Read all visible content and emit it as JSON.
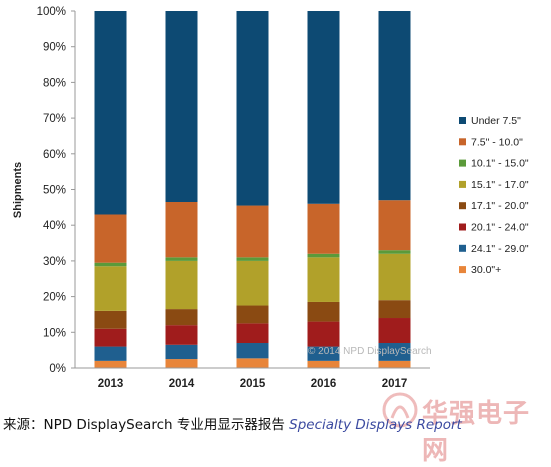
{
  "chart_data": {
    "type": "bar",
    "stacked": true,
    "normalized": true,
    "title": "",
    "xlabel": "",
    "ylabel": "Shipments",
    "ylim": [
      0,
      100
    ],
    "yticks": [
      "0%",
      "10%",
      "20%",
      "30%",
      "40%",
      "50%",
      "60%",
      "70%",
      "80%",
      "90%",
      "100%"
    ],
    "categories": [
      "2013",
      "2014",
      "2015",
      "2016",
      "2017"
    ],
    "legend_position": "right",
    "grid": false,
    "series": [
      {
        "name": "30.0\"+",
        "color": "#e8853a",
        "values": [
          2.0,
          2.5,
          2.7,
          2.0,
          2.0
        ]
      },
      {
        "name": "24.1\" - 29.0\"",
        "color": "#1f5f8f",
        "values": [
          4.0,
          4.0,
          4.3,
          4.0,
          5.0
        ]
      },
      {
        "name": "20.1\" - 24.0\"",
        "color": "#a01c1c",
        "values": [
          5.0,
          5.5,
          5.5,
          7.0,
          7.0
        ]
      },
      {
        "name": "17.1\" - 20.0\"",
        "color": "#8a4a12",
        "values": [
          5.0,
          4.5,
          5.0,
          5.5,
          5.0
        ]
      },
      {
        "name": "15.1\" - 17.0\"",
        "color": "#b1a12a",
        "values": [
          12.5,
          13.5,
          12.5,
          12.5,
          13.0
        ]
      },
      {
        "name": "10.1\" - 15.0\"",
        "color": "#5b9a3a",
        "values": [
          1.0,
          1.0,
          1.0,
          1.0,
          1.0
        ]
      },
      {
        "name": "7.5\" - 10.0\"",
        "color": "#c8652a",
        "values": [
          13.5,
          15.5,
          14.5,
          14.0,
          14.0
        ]
      },
      {
        "name": "Under 7.5\"",
        "color": "#0d4a73",
        "values": [
          57.0,
          53.5,
          54.5,
          54.0,
          53.0
        ]
      }
    ],
    "annotation": "© 2014 NPD DisplaySearch"
  },
  "caption": {
    "prefix": "来源：NPD DisplaySearch 专业用显示器报告 ",
    "report": "Specialty Displays Report"
  },
  "watermark_text": "华强电子网"
}
